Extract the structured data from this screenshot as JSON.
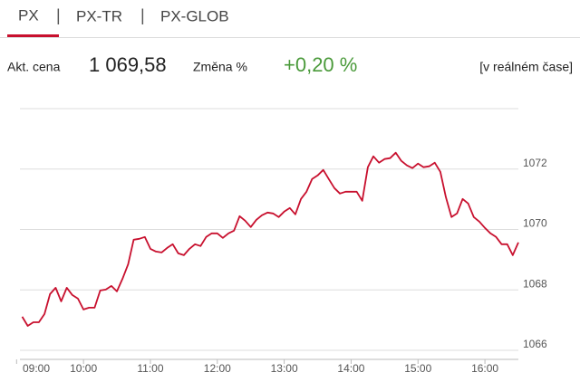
{
  "tabs": [
    "PX",
    "PX-TR",
    "PX-GLOB"
  ],
  "quote": {
    "price_label": "Akt. cena",
    "price": "1 069,58",
    "change_label": "Změna %",
    "change": "+0,20 %",
    "mode": "[v reálném čase]"
  },
  "chart_data": {
    "type": "line",
    "color": "#c8102e",
    "x": [
      545,
      550,
      555,
      560,
      565,
      570,
      575,
      580,
      585,
      590,
      595,
      600,
      605,
      610,
      615,
      620,
      625,
      630,
      635,
      640,
      645,
      650,
      655,
      660,
      665,
      670,
      675,
      680,
      685,
      690,
      695,
      700,
      705,
      710,
      715,
      720,
      725,
      730,
      735,
      740,
      745,
      750,
      755,
      760,
      765,
      770,
      775,
      780,
      785,
      790,
      795,
      800,
      805,
      810,
      815,
      820,
      825,
      830,
      835,
      840,
      845,
      850,
      855,
      860,
      865,
      870,
      875,
      880,
      885,
      890,
      895,
      900,
      905,
      910,
      915,
      920,
      925,
      930,
      935,
      940,
      945,
      950,
      955,
      960,
      965,
      970,
      975,
      980,
      985,
      990
    ],
    "values": [
      1067.11,
      1066.81,
      1066.93,
      1066.93,
      1067.2,
      1067.86,
      1068.07,
      1067.62,
      1068.07,
      1067.83,
      1067.71,
      1067.35,
      1067.41,
      1067.41,
      1067.98,
      1068.01,
      1068.13,
      1067.95,
      1068.37,
      1068.85,
      1069.66,
      1069.69,
      1069.75,
      1069.36,
      1069.27,
      1069.24,
      1069.39,
      1069.51,
      1069.21,
      1069.15,
      1069.36,
      1069.51,
      1069.45,
      1069.75,
      1069.87,
      1069.87,
      1069.72,
      1069.87,
      1069.96,
      1070.44,
      1070.29,
      1070.08,
      1070.32,
      1070.47,
      1070.56,
      1070.53,
      1070.41,
      1070.59,
      1070.71,
      1070.5,
      1071.01,
      1071.25,
      1071.67,
      1071.79,
      1071.97,
      1071.67,
      1071.37,
      1071.19,
      1071.25,
      1071.25,
      1071.25,
      1070.95,
      1072.06,
      1072.42,
      1072.21,
      1072.33,
      1072.36,
      1072.54,
      1072.27,
      1072.12,
      1072.03,
      1072.18,
      1072.06,
      1072.09,
      1072.21,
      1071.91,
      1071.07,
      1070.41,
      1070.53,
      1071.01,
      1070.86,
      1070.41,
      1070.26,
      1070.05,
      1069.87,
      1069.75,
      1069.51,
      1069.51,
      1069.15,
      1069.57
    ],
    "xlim": [
      543,
      990
    ],
    "xticks": [
      {
        "value": 540,
        "label": "09:00"
      },
      {
        "value": 600,
        "label": "10:00"
      },
      {
        "value": 660,
        "label": "11:00"
      },
      {
        "value": 720,
        "label": "12:00"
      },
      {
        "value": 780,
        "label": "13:00"
      },
      {
        "value": 840,
        "label": "14:00"
      },
      {
        "value": 900,
        "label": "15:00"
      },
      {
        "value": 960,
        "label": "16:00"
      }
    ],
    "ylim": [
      1065.7,
      1074
    ],
    "yticks": [
      1066,
      1068,
      1070,
      1072
    ],
    "grid": true
  }
}
